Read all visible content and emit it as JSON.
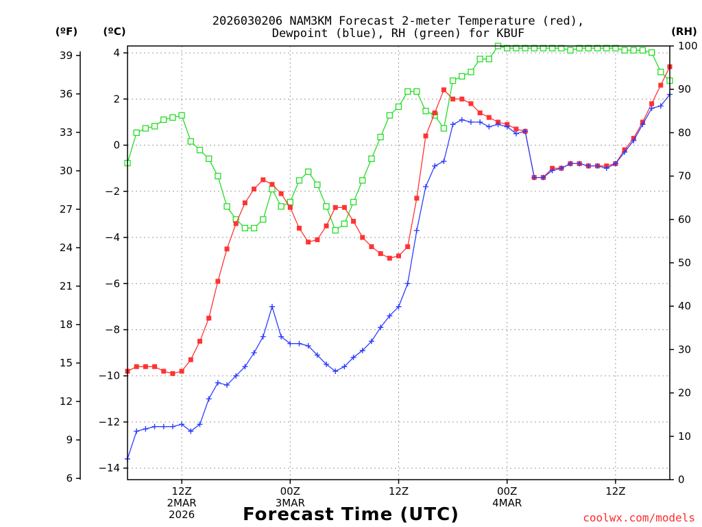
{
  "chart_data": {
    "type": "line",
    "title": "2026030206 NAM3KM Forecast 2-meter Temperature (red),",
    "subtitle": "Dewpoint (blue), RH (green) for KBUF",
    "xlabel": "Forecast Time (UTC)",
    "credit": "coolwx.com/models",
    "units": {
      "left_f": "(ºF)",
      "left_c": "(ºC)",
      "right": "(RH)"
    },
    "x_ticks": [
      {
        "hour": 6,
        "l1": "12Z",
        "l2": "2MAR",
        "l3": "2026"
      },
      {
        "hour": 18,
        "l1": "00Z",
        "l2": "3MAR",
        "l3": ""
      },
      {
        "hour": 30,
        "l1": "12Z",
        "l2": "",
        "l3": ""
      },
      {
        "hour": 42,
        "l1": "00Z",
        "l2": "4MAR",
        "l3": ""
      },
      {
        "hour": 54,
        "l1": "12Z",
        "l2": "",
        "l3": ""
      }
    ],
    "xlim": [
      0,
      60
    ],
    "ylim_c": [
      -14.5,
      4.3
    ],
    "ylim_rh": [
      0,
      100
    ],
    "f_ticks": [
      6,
      9,
      12,
      15,
      18,
      21,
      24,
      27,
      30,
      33,
      36,
      39
    ],
    "c_ticks": [
      -14,
      -12,
      -10,
      -8,
      -6,
      -4,
      -2,
      0,
      2,
      4
    ],
    "rh_ticks": [
      0,
      10,
      20,
      30,
      40,
      50,
      60,
      70,
      80,
      90,
      100
    ],
    "series": [
      {
        "name": "2-meter Temperature (C)",
        "color": "#ff3333",
        "marker": "filled-square",
        "axis": "celsius",
        "x": [
          0,
          1,
          2,
          3,
          4,
          5,
          6,
          7,
          8,
          9,
          10,
          11,
          12,
          13,
          14,
          15,
          16,
          17,
          18,
          19,
          20,
          21,
          22,
          23,
          24,
          25,
          26,
          27,
          28,
          29,
          30,
          31,
          32,
          33,
          34,
          35,
          36,
          37,
          38,
          39,
          40,
          41,
          42,
          43,
          44,
          45,
          46,
          47,
          48,
          49,
          50,
          51,
          52,
          53,
          54,
          55,
          56,
          57,
          58,
          59,
          60
        ],
        "values": [
          -9.8,
          -9.6,
          -9.6,
          -9.6,
          -9.8,
          -9.9,
          -9.8,
          -9.3,
          -8.5,
          -7.5,
          -5.9,
          -4.5,
          -3.4,
          -2.5,
          -1.9,
          -1.5,
          -1.7,
          -2.1,
          -2.7,
          -3.6,
          -4.2,
          -4.1,
          -3.5,
          -2.7,
          -2.7,
          -3.3,
          -4.0,
          -4.4,
          -4.7,
          -4.9,
          -4.8,
          -4.4,
          -2.3,
          0.4,
          1.4,
          2.4,
          2.0,
          2.0,
          1.8,
          1.4,
          1.2,
          1.0,
          0.9,
          0.7,
          0.6,
          -1.4,
          -1.4,
          -1.0,
          -1.0,
          -0.8,
          -0.8,
          -0.9,
          -0.9,
          -0.9,
          -0.8,
          -0.2,
          0.3,
          1.0,
          1.8,
          2.6,
          3.4
        ]
      },
      {
        "name": "Dewpoint (C)",
        "color": "#2a3cff",
        "marker": "plus",
        "axis": "celsius",
        "x": [
          0,
          1,
          2,
          3,
          4,
          5,
          6,
          7,
          8,
          9,
          10,
          11,
          12,
          13,
          14,
          15,
          16,
          17,
          18,
          19,
          20,
          21,
          22,
          23,
          24,
          25,
          26,
          27,
          28,
          29,
          30,
          31,
          32,
          33,
          34,
          35,
          36,
          37,
          38,
          39,
          40,
          41,
          42,
          43,
          44,
          45,
          46,
          47,
          48,
          49,
          50,
          51,
          52,
          53,
          54,
          55,
          56,
          57,
          58,
          59,
          60
        ],
        "values": [
          -13.6,
          -12.4,
          -12.3,
          -12.2,
          -12.2,
          -12.2,
          -12.1,
          -12.4,
          -12.1,
          -11.0,
          -10.3,
          -10.4,
          -10.0,
          -9.6,
          -9.0,
          -8.3,
          -7.0,
          -8.3,
          -8.6,
          -8.6,
          -8.7,
          -9.1,
          -9.5,
          -9.8,
          -9.6,
          -9.2,
          -8.9,
          -8.5,
          -7.9,
          -7.4,
          -7.0,
          -6.0,
          -3.7,
          -1.8,
          -0.9,
          -0.7,
          0.9,
          1.1,
          1.0,
          1.0,
          0.8,
          0.9,
          0.8,
          0.5,
          0.6,
          -1.4,
          -1.4,
          -1.1,
          -1.0,
          -0.8,
          -0.8,
          -0.9,
          -0.9,
          -1.0,
          -0.8,
          -0.3,
          0.2,
          0.9,
          1.6,
          1.7,
          2.2
        ]
      },
      {
        "name": "RH (%)",
        "color": "#22dd22",
        "marker": "open-square",
        "axis": "rh",
        "x": [
          0,
          1,
          2,
          3,
          4,
          5,
          6,
          7,
          8,
          9,
          10,
          11,
          12,
          13,
          14,
          15,
          16,
          17,
          18,
          19,
          20,
          21,
          22,
          23,
          24,
          25,
          26,
          27,
          28,
          29,
          30,
          31,
          32,
          33,
          34,
          35,
          36,
          37,
          38,
          39,
          40,
          41,
          42,
          43,
          44,
          45,
          46,
          47,
          48,
          49,
          50,
          51,
          52,
          53,
          54,
          55,
          56,
          57,
          58,
          59,
          60
        ],
        "values": [
          73,
          80,
          81,
          81.5,
          83,
          83.5,
          84,
          78,
          76,
          74,
          70,
          63,
          60,
          58,
          58,
          60,
          67,
          63,
          64,
          69,
          71,
          68,
          63,
          57.5,
          59,
          64,
          69,
          74,
          79,
          84,
          86,
          89.5,
          89.5,
          85,
          84,
          81,
          92,
          93,
          94,
          97,
          97,
          100,
          99.5,
          99.5,
          99.5,
          99.5,
          99.5,
          99.5,
          99.5,
          99,
          99.5,
          99.5,
          99.5,
          99.5,
          99.5,
          99,
          99,
          99,
          98.5,
          94,
          92
        ]
      }
    ]
  }
}
